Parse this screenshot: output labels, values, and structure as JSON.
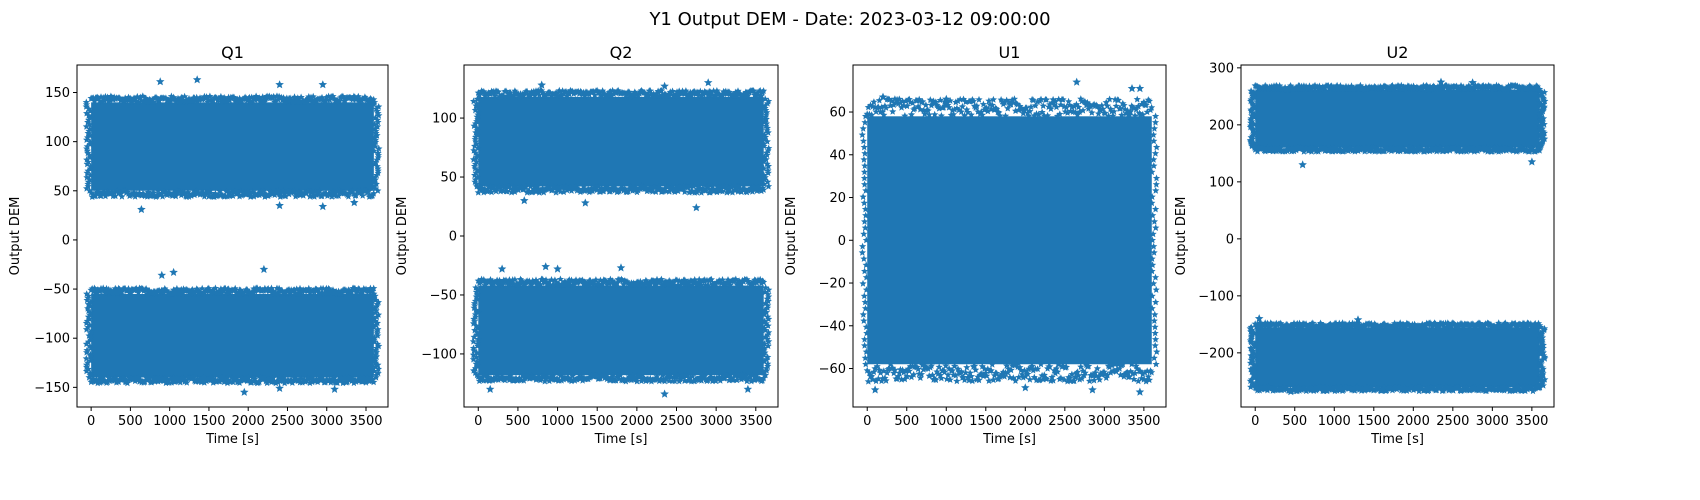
{
  "figure": {
    "suptitle": "Y1 Output DEM - Date: 2023-03-12 09:00:00",
    "marker_color": "#1f77b4",
    "marker": "star"
  },
  "chart_data": [
    {
      "type": "scatter",
      "title": "Q1",
      "xlabel": "Time [s]",
      "ylabel": "Output DEM",
      "xlim": [
        -180,
        3780
      ],
      "ylim": [
        -170,
        178
      ],
      "xticks": [
        0,
        500,
        1000,
        1500,
        2000,
        2500,
        3000,
        3500
      ],
      "yticks": [
        -150,
        -100,
        -50,
        0,
        50,
        100,
        150
      ],
      "ytick_labels": [
        "−150",
        "−100",
        "−50",
        "0",
        "50",
        "100",
        "150"
      ],
      "x_range": [
        0,
        3600
      ],
      "bands": [
        {
          "center": 95,
          "lo": 50,
          "hi": 140
        },
        {
          "center": -97,
          "lo": -140,
          "hi": -55
        }
      ],
      "outliers": [
        [
          880,
          161
        ],
        [
          1350,
          163
        ],
        [
          2400,
          158
        ],
        [
          2950,
          158
        ],
        [
          640,
          31
        ],
        [
          2400,
          35
        ],
        [
          2950,
          34
        ],
        [
          3350,
          38
        ],
        [
          900,
          -36
        ],
        [
          1050,
          -33
        ],
        [
          2200,
          -30
        ],
        [
          1950,
          -155
        ],
        [
          2400,
          -151
        ],
        [
          3100,
          -152
        ]
      ]
    },
    {
      "type": "scatter",
      "title": "Q2",
      "xlabel": "Time [s]",
      "ylabel": "Output DEM",
      "xlim": [
        -180,
        3780
      ],
      "ylim": [
        -145,
        145
      ],
      "xticks": [
        0,
        500,
        1000,
        1500,
        2000,
        2500,
        3000,
        3500
      ],
      "yticks": [
        -100,
        -50,
        0,
        50,
        100
      ],
      "ytick_labels": [
        "−100",
        "−50",
        "0",
        "50",
        "100"
      ],
      "x_range": [
        0,
        3600
      ],
      "bands": [
        {
          "center": 80,
          "lo": 42,
          "hi": 118
        },
        {
          "center": -80,
          "lo": -118,
          "hi": -42
        }
      ],
      "outliers": [
        [
          800,
          128
        ],
        [
          2900,
          130
        ],
        [
          2350,
          127
        ],
        [
          580,
          30
        ],
        [
          1350,
          28
        ],
        [
          2750,
          24
        ],
        [
          300,
          -28
        ],
        [
          850,
          -26
        ],
        [
          1000,
          -28
        ],
        [
          1800,
          -27
        ],
        [
          2350,
          -134
        ],
        [
          150,
          -130
        ],
        [
          3400,
          -130
        ]
      ]
    },
    {
      "type": "scatter",
      "title": "U1",
      "xlabel": "Time [s]",
      "ylabel": "Output DEM",
      "xlim": [
        -180,
        3780
      ],
      "ylim": [
        -78,
        82
      ],
      "xticks": [
        0,
        500,
        1000,
        1500,
        2000,
        2500,
        3000,
        3500
      ],
      "yticks": [
        -60,
        -40,
        -20,
        0,
        20,
        40,
        60
      ],
      "ytick_labels": [
        "−60",
        "−40",
        "−20",
        "0",
        "20",
        "40",
        "60"
      ],
      "x_range": [
        0,
        3600
      ],
      "bands": [
        {
          "center": 0,
          "lo": -58,
          "hi": 58
        }
      ],
      "outliers": [
        [
          2650,
          74
        ],
        [
          3350,
          71
        ],
        [
          3450,
          71
        ],
        [
          200,
          67
        ],
        [
          1000,
          66
        ],
        [
          100,
          -70
        ],
        [
          2000,
          -69
        ],
        [
          2850,
          -70
        ],
        [
          3450,
          -71
        ]
      ]
    },
    {
      "type": "scatter",
      "title": "U2",
      "xlabel": "Time [s]",
      "ylabel": "Output DEM",
      "xlim": [
        -180,
        3780
      ],
      "ylim": [
        -295,
        305
      ],
      "xticks": [
        0,
        500,
        1000,
        1500,
        2000,
        2500,
        3000,
        3500
      ],
      "yticks": [
        -200,
        -100,
        0,
        100,
        200,
        300
      ],
      "ytick_labels": [
        "−200",
        "−100",
        "0",
        "100",
        "200",
        "300"
      ],
      "x_range": [
        0,
        3600
      ],
      "bands": [
        {
          "center": 210,
          "lo": 160,
          "hi": 262
        },
        {
          "center": -210,
          "lo": -260,
          "hi": -155
        }
      ],
      "outliers": [
        [
          2350,
          275
        ],
        [
          2750,
          274
        ],
        [
          600,
          130
        ],
        [
          3500,
          135
        ],
        [
          50,
          -140
        ],
        [
          1300,
          -142
        ],
        [
          450,
          -268
        ],
        [
          1600,
          -266
        ]
      ]
    }
  ]
}
